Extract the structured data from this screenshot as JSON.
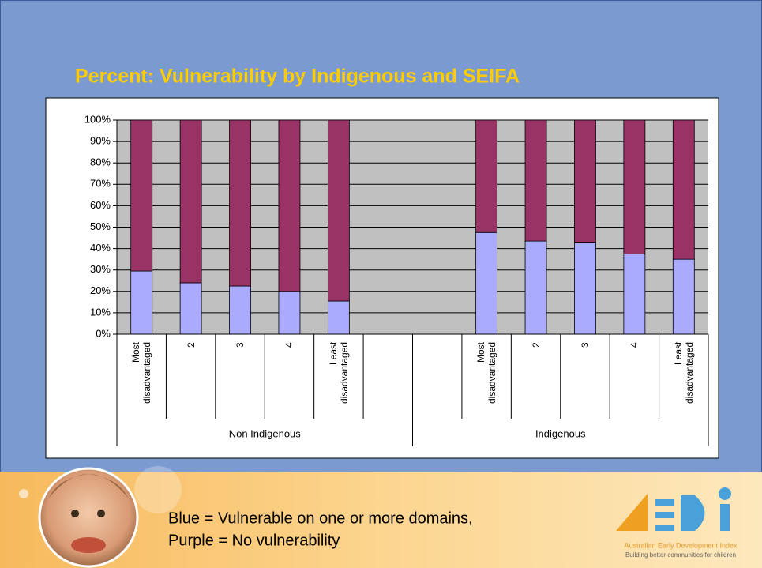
{
  "chart_data": {
    "type": "stacked-bar",
    "title": "Percent: Vulnerability by Indigenous and SEIFA",
    "categories": [
      "Most disadvantaged",
      "2",
      "3",
      "4",
      "Least disadvantaged",
      null,
      null,
      "Most disadvantaged",
      "2",
      "3",
      "4",
      "Least disadvantaged"
    ],
    "groups": [
      {
        "label": "Non Indigenous",
        "span": [
          0,
          5
        ]
      },
      {
        "label": "Indigenous",
        "span": [
          6,
          11
        ]
      }
    ],
    "series": [
      {
        "color": "#aaaaff",
        "values": [
          29.5,
          24,
          22.5,
          20,
          15.5,
          null,
          null,
          47.5,
          43.5,
          43,
          37.5,
          35
        ]
      },
      {
        "color": "#993366",
        "values": [
          70.5,
          76,
          77.5,
          80,
          84.5,
          null,
          null,
          52.5,
          56.5,
          57,
          62.5,
          65
        ]
      }
    ],
    "ylim": [
      0,
      100
    ],
    "yticks": [
      {
        "value": 0,
        "label": "0%"
      },
      {
        "value": 10,
        "label": "10%"
      },
      {
        "value": 20,
        "label": "20%"
      },
      {
        "value": 30,
        "label": "30%"
      },
      {
        "value": 40,
        "label": "40%"
      },
      {
        "value": 50,
        "label": "50%"
      },
      {
        "value": 60,
        "label": "60%"
      },
      {
        "value": 70,
        "label": "70%"
      },
      {
        "value": 80,
        "label": "80%"
      },
      {
        "value": 90,
        "label": "90%"
      },
      {
        "value": 100,
        "label": "100%"
      }
    ],
    "grid": true
  },
  "footer": {
    "lines": [
      "Blue = Vulnerable on one or more domains,",
      "Purple = No vulnerability"
    ],
    "logo": {
      "name": "Australian Early Development Index",
      "tagline": "Building better communities for children"
    }
  }
}
